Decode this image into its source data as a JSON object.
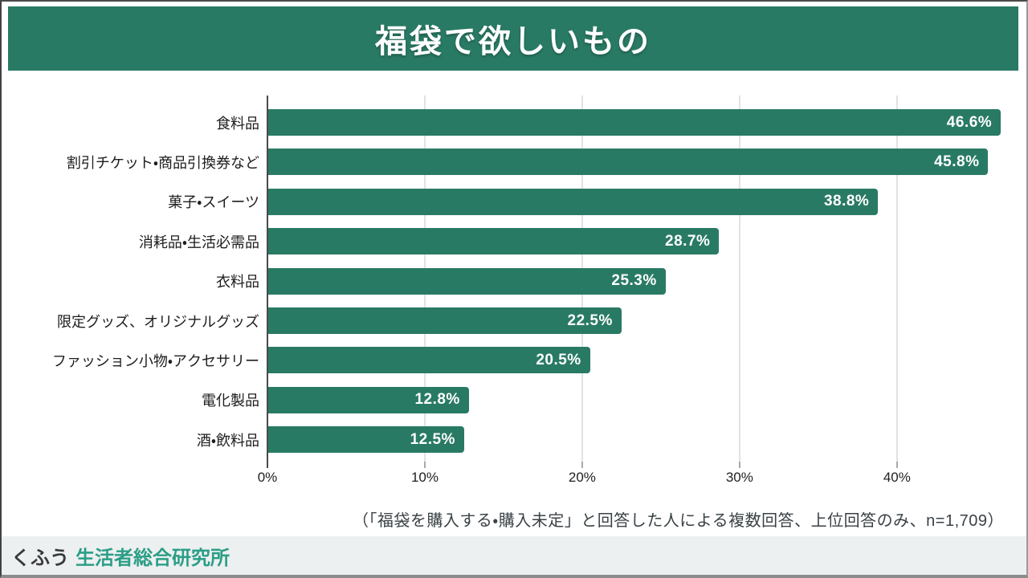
{
  "header": {
    "title": "福袋で欲しいもの"
  },
  "chart_data": {
    "type": "bar",
    "orientation": "horizontal",
    "title": "福袋で欲しいもの",
    "categories": [
      "食料品",
      "割引チケット・商品引換券など",
      "菓子・スイーツ",
      "消耗品・生活必需品",
      "衣料品",
      "限定グッズ、オリジナルグッズ",
      "ファッション小物・アクセサリー",
      "電化製品",
      "酒・飲料品"
    ],
    "values": [
      46.6,
      45.8,
      38.8,
      28.7,
      25.3,
      22.5,
      20.5,
      12.8,
      12.5
    ],
    "value_labels": [
      "46.6%",
      "45.8%",
      "38.8%",
      "28.7%",
      "25.3%",
      "22.5%",
      "20.5%",
      "12.8%",
      "12.5%"
    ],
    "xlim": [
      0,
      47
    ],
    "tick_values": [
      0,
      10,
      20,
      30,
      40
    ],
    "tick_labels": [
      "0%",
      "10%",
      "20%",
      "30%",
      "40%"
    ],
    "grid": true,
    "legend": "none",
    "bar_color": "#297a64",
    "value_label_color": "#ffffff"
  },
  "footnote": {
    "text": "（「福袋を購入する・購入未定」と回答した人による複数回答、上位回答のみ、n=1,709）"
  },
  "footer": {
    "brand_main": "くふう",
    "brand_suffix": "生活者総合研究所",
    "brand_suffix_color": "#2b9e87"
  },
  "colors": {
    "header_background": "#297a64",
    "bar_green": "#297a64",
    "footer_background": "#edf0f0",
    "gridline": "#e2e2e2",
    "axis": "#4a4a4a"
  }
}
